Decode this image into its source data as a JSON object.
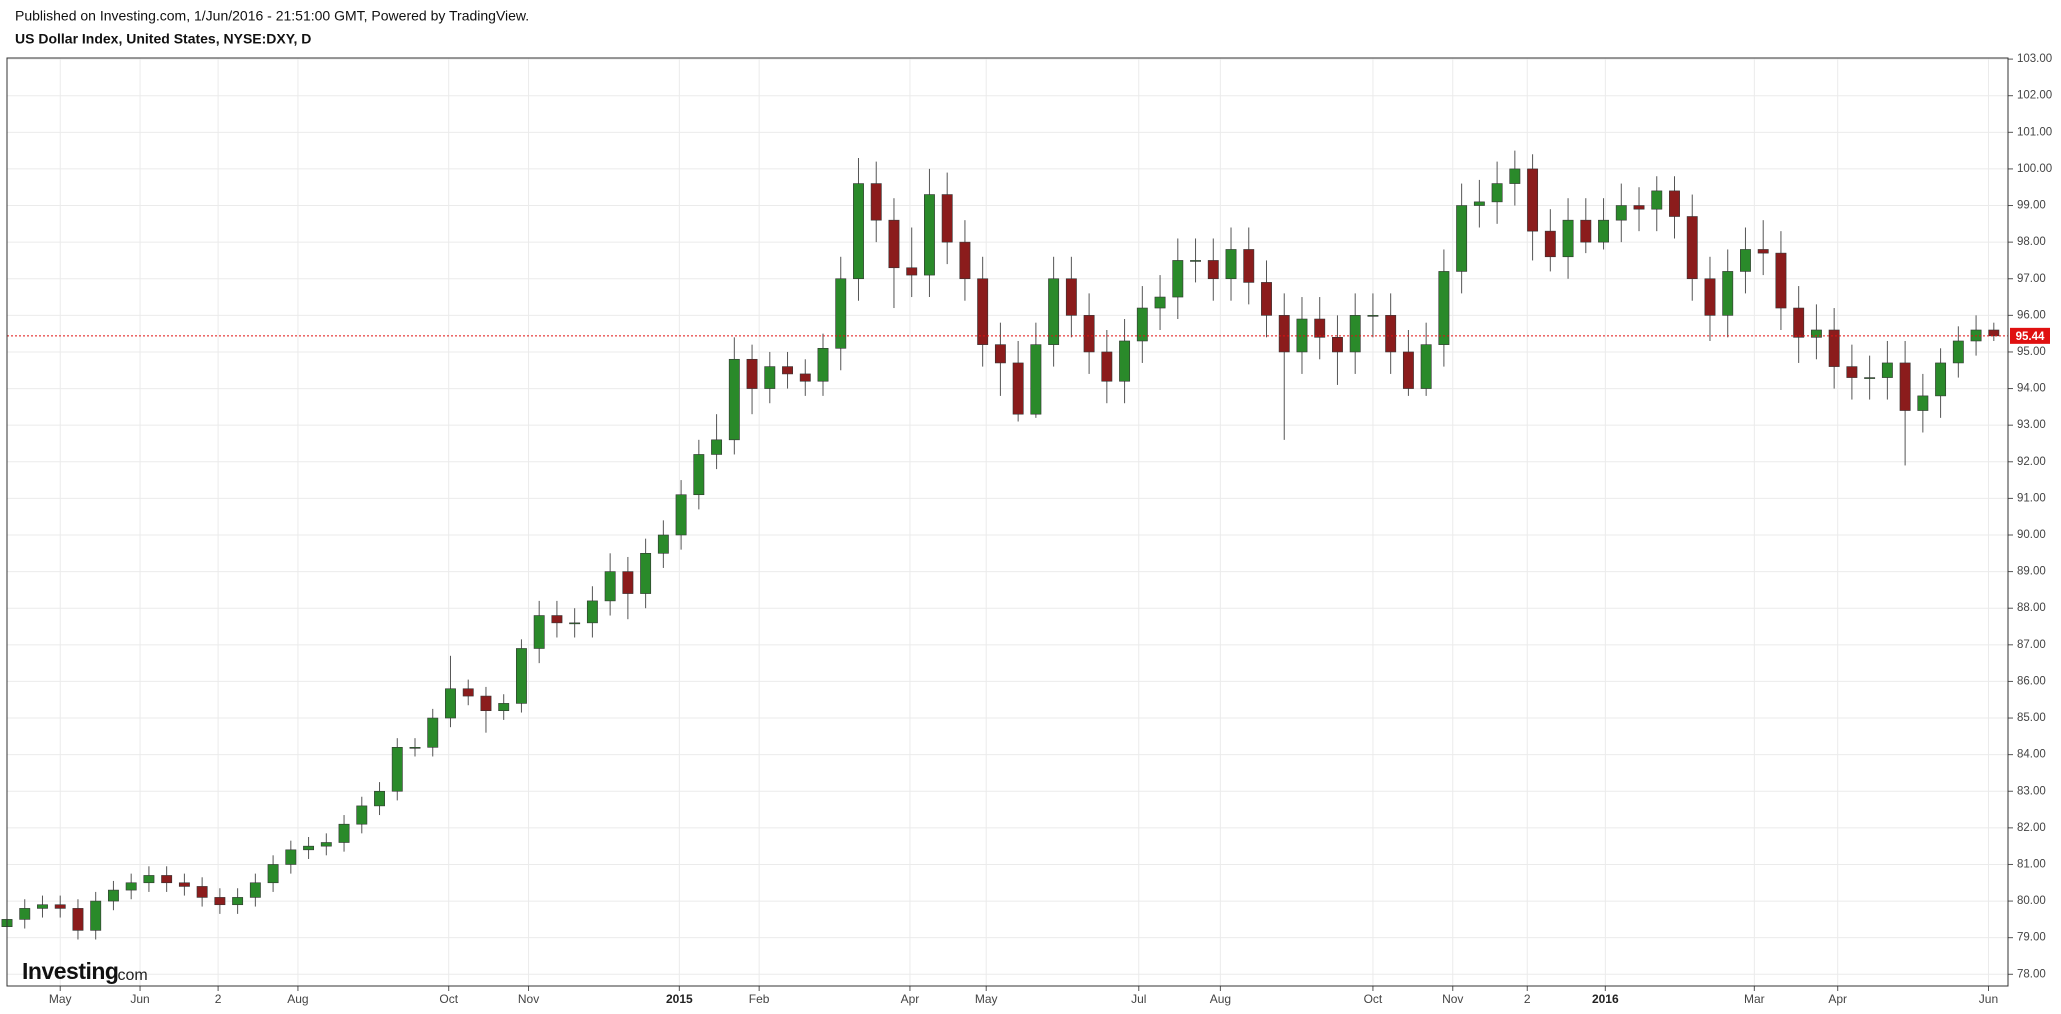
{
  "chart_data": {
    "type": "candlestick",
    "published": "Published on Investing.com, 1/Jun/2016 - 21:51:00 GMT, Powered by TradingView.",
    "title": "US Dollar Index, United States, NYSE:DXY, D",
    "watermark": "Investing",
    "watermark_suffix": ".com",
    "up_color": "#2a8a2a",
    "down_color": "#8b1c1c",
    "wick_color": "#555555",
    "price_line_color": "#e01010",
    "grid": true,
    "open": [
      79.3,
      79.5,
      79.8,
      79.9,
      79.8,
      79.2,
      80.0,
      80.3,
      80.5,
      80.7,
      80.5,
      80.4,
      80.1,
      79.9,
      80.1,
      80.5,
      81.0,
      81.4,
      81.5,
      81.6,
      82.1,
      82.6,
      83.0,
      84.2,
      84.2,
      85.0,
      85.8,
      85.6,
      85.2,
      85.4,
      86.9,
      87.8,
      87.6,
      87.6,
      88.2,
      89.0,
      88.4,
      89.5,
      90.0,
      91.1,
      92.2,
      92.6,
      94.8,
      94.0,
      94.6,
      94.4,
      94.2,
      95.1,
      97.0,
      99.6,
      98.6,
      97.3,
      97.1,
      99.3,
      98.0,
      97.0,
      95.2,
      94.7,
      93.3,
      95.2,
      97.0,
      96.0,
      95.0,
      94.2,
      95.3,
      96.2,
      96.5,
      97.5,
      97.5,
      97.0,
      97.8,
      96.9,
      96.0,
      95.0,
      95.9,
      95.4,
      95.0,
      96.0,
      96.0,
      95.0,
      94.0,
      95.2,
      97.2,
      99.0,
      99.1,
      99.6,
      100.0,
      98.3,
      97.6,
      98.6,
      98.0,
      98.6,
      99.0,
      98.9,
      99.4,
      98.7,
      97.0,
      96.0,
      97.2,
      97.8,
      97.7,
      96.2,
      95.4,
      95.6,
      94.6,
      94.3,
      94.3,
      94.7,
      93.4,
      93.8,
      94.7,
      95.3,
      95.6
    ],
    "high": [
      79.75,
      80.05,
      80.15,
      80.15,
      80.05,
      80.25,
      80.55,
      80.75,
      80.95,
      80.95,
      80.75,
      80.65,
      80.35,
      80.35,
      80.75,
      81.25,
      81.65,
      81.75,
      81.85,
      82.35,
      82.85,
      83.25,
      84.45,
      84.45,
      85.25,
      86.7,
      86.05,
      85.85,
      85.65,
      87.15,
      88.2,
      88.2,
      88.0,
      88.6,
      89.5,
      89.4,
      89.9,
      90.4,
      91.5,
      92.6,
      93.3,
      95.4,
      95.2,
      95.0,
      95.0,
      94.8,
      95.5,
      97.6,
      100.3,
      100.2,
      99.2,
      98.4,
      100.0,
      99.9,
      98.6,
      97.6,
      95.8,
      95.3,
      95.8,
      97.6,
      97.6,
      96.6,
      95.6,
      95.9,
      96.8,
      97.1,
      98.1,
      98.1,
      98.1,
      98.4,
      98.4,
      97.5,
      96.6,
      96.5,
      96.5,
      96.0,
      96.6,
      96.6,
      96.6,
      95.6,
      95.8,
      97.8,
      99.6,
      99.7,
      100.2,
      100.5,
      100.4,
      98.9,
      99.2,
      99.2,
      99.2,
      99.6,
      99.5,
      99.8,
      99.8,
      99.3,
      97.6,
      97.8,
      98.4,
      98.6,
      98.3,
      96.8,
      96.3,
      96.2,
      95.2,
      94.9,
      95.3,
      95.3,
      94.4,
      95.1,
      95.7,
      96.0,
      95.8
    ],
    "low": [
      79.05,
      79.25,
      79.55,
      79.55,
      78.95,
      78.95,
      79.75,
      80.05,
      80.25,
      80.25,
      80.15,
      79.85,
      79.65,
      79.65,
      79.85,
      80.25,
      80.75,
      81.15,
      81.25,
      81.35,
      81.85,
      82.35,
      82.75,
      83.95,
      83.95,
      84.75,
      85.35,
      84.6,
      84.95,
      85.15,
      86.5,
      87.2,
      87.2,
      87.2,
      87.8,
      87.7,
      88.0,
      89.1,
      89.6,
      90.7,
      91.8,
      92.2,
      93.3,
      93.6,
      94.0,
      93.8,
      93.8,
      94.5,
      96.4,
      98.0,
      96.2,
      96.5,
      96.5,
      97.4,
      96.4,
      94.6,
      93.8,
      93.1,
      93.2,
      94.6,
      95.4,
      94.4,
      93.6,
      93.6,
      94.7,
      95.6,
      95.9,
      96.9,
      96.4,
      96.4,
      96.3,
      95.4,
      92.6,
      94.4,
      94.8,
      94.1,
      94.4,
      95.4,
      94.4,
      93.8,
      93.8,
      94.6,
      96.6,
      98.4,
      98.5,
      99.0,
      97.5,
      97.2,
      97.0,
      97.7,
      97.8,
      98.0,
      98.3,
      98.3,
      98.1,
      96.4,
      95.3,
      95.4,
      96.6,
      97.1,
      95.6,
      94.7,
      94.8,
      94.0,
      93.7,
      93.7,
      93.7,
      91.9,
      92.8,
      93.2,
      94.3,
      94.9,
      95.3
    ],
    "close": [
      79.5,
      79.8,
      79.9,
      79.8,
      79.2,
      80.0,
      80.3,
      80.5,
      80.7,
      80.5,
      80.4,
      80.1,
      79.9,
      80.1,
      80.5,
      81.0,
      81.4,
      81.5,
      81.6,
      82.1,
      82.6,
      83.0,
      84.2,
      84.2,
      85.0,
      85.8,
      85.6,
      85.2,
      85.4,
      86.9,
      87.8,
      87.6,
      87.6,
      88.2,
      89.0,
      88.4,
      89.5,
      90.0,
      91.1,
      92.2,
      92.6,
      94.8,
      94.0,
      94.6,
      94.4,
      94.2,
      95.1,
      97.0,
      99.6,
      98.6,
      97.3,
      97.1,
      99.3,
      98.0,
      97.0,
      95.2,
      94.7,
      93.3,
      95.2,
      97.0,
      96.0,
      95.0,
      94.2,
      95.3,
      96.2,
      96.5,
      97.5,
      97.5,
      97.0,
      97.8,
      96.9,
      96.0,
      95.0,
      95.9,
      95.4,
      95.0,
      96.0,
      96.0,
      95.0,
      94.0,
      95.2,
      97.2,
      99.0,
      99.1,
      99.6,
      100.0,
      98.3,
      97.6,
      98.6,
      98.0,
      98.6,
      99.0,
      98.9,
      99.4,
      98.7,
      97.0,
      96.0,
      97.2,
      97.8,
      97.7,
      96.2,
      95.4,
      95.6,
      94.6,
      94.3,
      94.3,
      94.7,
      93.4,
      93.8,
      94.7,
      95.3,
      95.6,
      95.44
    ],
    "xlim": [
      0,
      112.8
    ],
    "xticks": [
      {
        "value": 3.0,
        "label": "May"
      },
      {
        "value": 7.5,
        "label": "Jun"
      },
      {
        "value": 11.9,
        "label": "2"
      },
      {
        "value": 16.4,
        "label": "Aug"
      },
      {
        "value": 24.9,
        "label": "Oct"
      },
      {
        "value": 29.4,
        "label": "Nov"
      },
      {
        "value": 37.9,
        "label": "2015"
      },
      {
        "value": 42.4,
        "label": "Feb"
      },
      {
        "value": 50.9,
        "label": "Apr"
      },
      {
        "value": 55.2,
        "label": "May"
      },
      {
        "value": 63.8,
        "label": "Jul"
      },
      {
        "value": 68.4,
        "label": "Aug"
      },
      {
        "value": 77.0,
        "label": "Oct"
      },
      {
        "value": 81.5,
        "label": "Nov"
      },
      {
        "value": 85.7,
        "label": "2"
      },
      {
        "value": 90.1,
        "label": "2016"
      },
      {
        "value": 98.5,
        "label": "Mar"
      },
      {
        "value": 103.2,
        "label": "Apr"
      },
      {
        "value": 111.7,
        "label": "Jun"
      }
    ],
    "ylim": [
      77.68,
      103.03
    ],
    "yticks": [
      {
        "value": 78,
        "label": "78.00"
      },
      {
        "value": 79,
        "label": "79.00"
      },
      {
        "value": 80,
        "label": "80.00"
      },
      {
        "value": 81,
        "label": "81.00"
      },
      {
        "value": 82,
        "label": "82.00"
      },
      {
        "value": 83,
        "label": "83.00"
      },
      {
        "value": 84,
        "label": "84.00"
      },
      {
        "value": 85,
        "label": "85.00"
      },
      {
        "value": 86,
        "label": "86.00"
      },
      {
        "value": 87,
        "label": "87.00"
      },
      {
        "value": 88,
        "label": "88.00"
      },
      {
        "value": 89,
        "label": "89.00"
      },
      {
        "value": 90,
        "label": "90.00"
      },
      {
        "value": 91,
        "label": "91.00"
      },
      {
        "value": 92,
        "label": "92.00"
      },
      {
        "value": 93,
        "label": "93.00"
      },
      {
        "value": 94,
        "label": "94.00"
      },
      {
        "value": 95,
        "label": "95.00"
      },
      {
        "value": 96,
        "label": "96.00"
      },
      {
        "value": 97,
        "label": "97.00"
      },
      {
        "value": 98,
        "label": "98.00"
      },
      {
        "value": 99,
        "label": "99.00"
      },
      {
        "value": 100,
        "label": "100.00"
      },
      {
        "value": 101,
        "label": "101.00"
      },
      {
        "value": 102,
        "label": "102.00"
      },
      {
        "value": 103,
        "label": "103.00"
      }
    ]
  }
}
